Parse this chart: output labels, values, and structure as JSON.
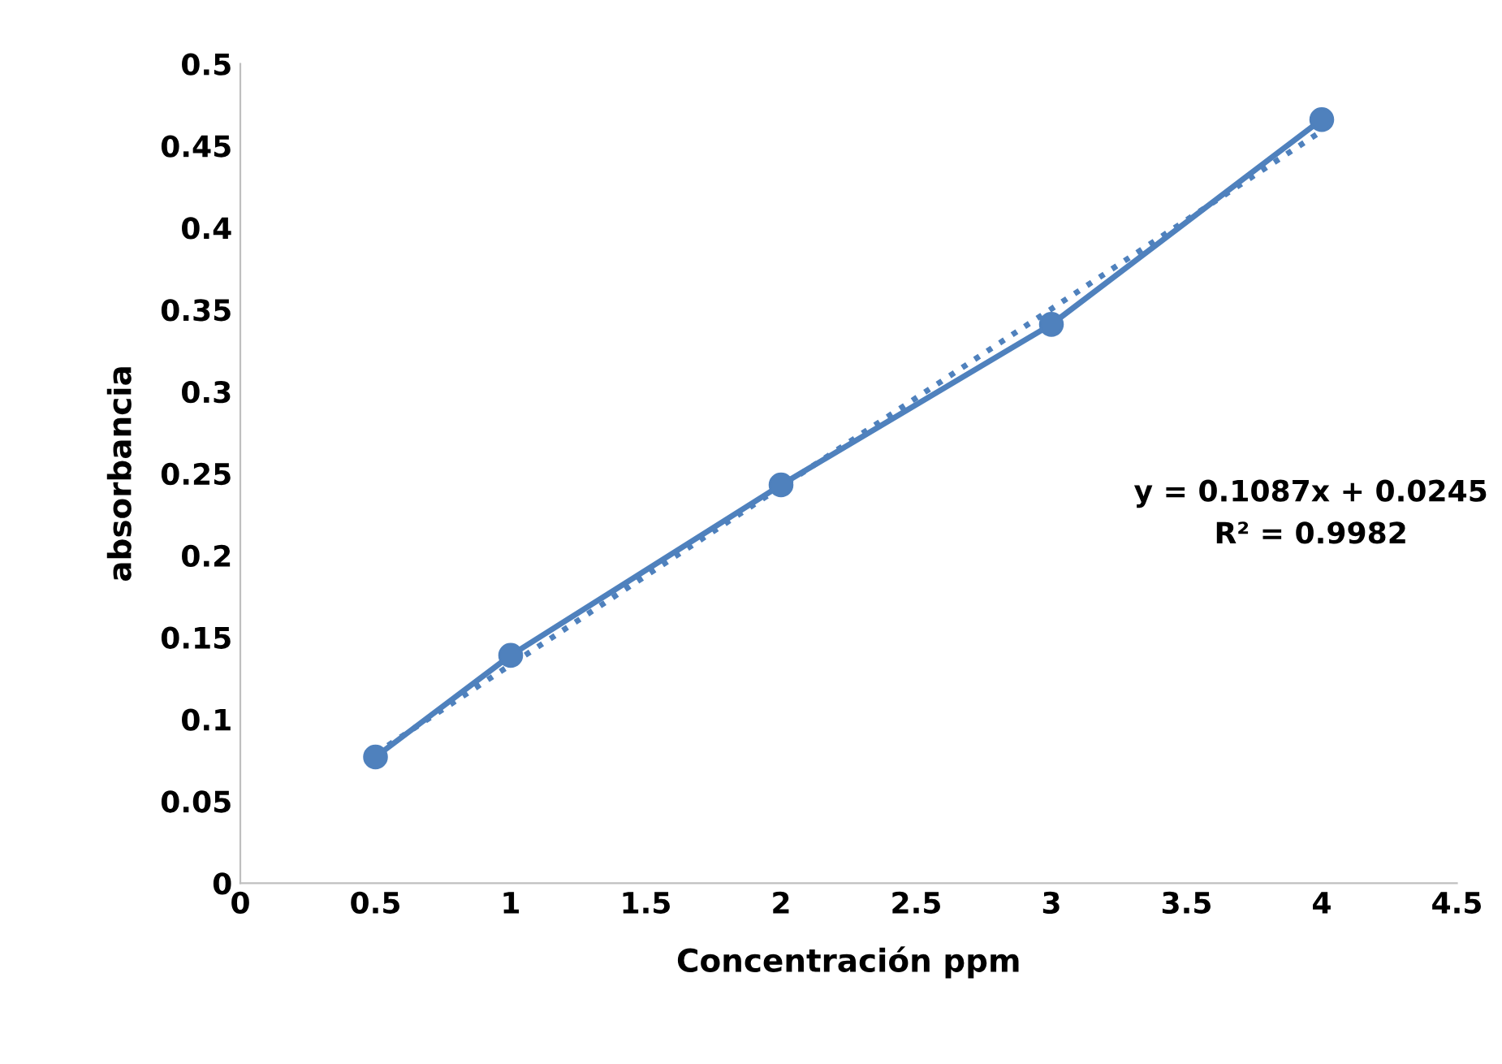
{
  "chart_data": {
    "type": "line",
    "xlabel": "Concentración ppm",
    "ylabel": "absorbancia",
    "xlim": [
      0,
      4.5
    ],
    "xticks": [
      0,
      0.5,
      1,
      1.5,
      2,
      2.5,
      3,
      3.5,
      4,
      4.5
    ],
    "ylim": [
      0,
      0.5
    ],
    "yticks": [
      0,
      0.05,
      0.1,
      0.15,
      0.2,
      0.25,
      0.3,
      0.35,
      0.4,
      0.45,
      0.5
    ],
    "grid": false,
    "legend": false,
    "series": [
      {
        "color": "#4f81bd",
        "marker": "circle",
        "line_style": "solid",
        "x": [
          0.5,
          1,
          2,
          3,
          4
        ],
        "values": [
          0.077,
          0.139,
          0.243,
          0.341,
          0.466
        ]
      },
      {
        "color": "#4f81bd",
        "marker": "none",
        "line_style": "dotted",
        "x": [
          0.5,
          4
        ],
        "values": [
          0.079,
          0.459
        ]
      }
    ],
    "annotations": [
      "y = 0.1087x + 0.0245\nR² = 0.9982"
    ]
  }
}
